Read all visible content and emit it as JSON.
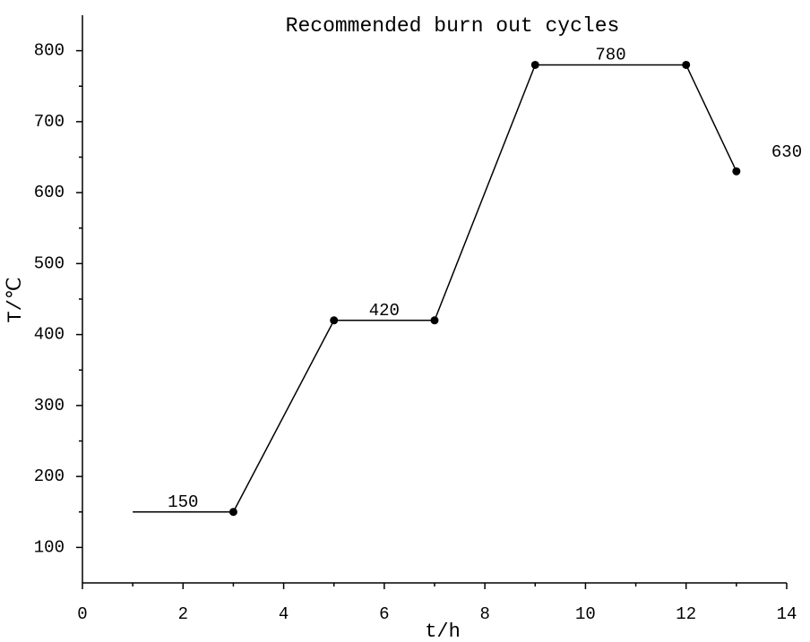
{
  "chart_data": {
    "type": "line",
    "title": "Recommended burn out cycles",
    "x_label": "t/h",
    "y_label": "T/℃",
    "x": [
      1,
      3,
      5,
      7,
      9,
      12,
      13
    ],
    "series": [
      {
        "color": "#000000",
        "values": [
          150,
          150,
          420,
          420,
          780,
          780,
          630
        ]
      }
    ],
    "xlim": [
      0,
      14
    ],
    "xticks": [
      0,
      2,
      4,
      6,
      8,
      10,
      12,
      14
    ],
    "ylim": [
      50,
      850
    ],
    "yticks": [
      100,
      200,
      300,
      400,
      500,
      600,
      700,
      800
    ],
    "grid": false,
    "annotations": [
      {
        "text": "150",
        "x": 2,
        "y": 150
      },
      {
        "text": "420",
        "x": 6,
        "y": 420
      },
      {
        "text": "780",
        "x": 10.5,
        "y": 780
      },
      {
        "text": "630",
        "x": 14,
        "y": 643
      }
    ]
  }
}
